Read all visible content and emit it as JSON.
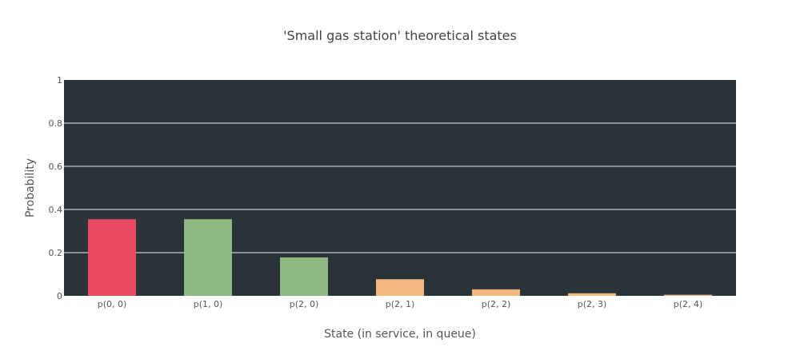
{
  "chart_data": {
    "type": "bar",
    "title": "'Small gas station' theoretical states",
    "xlabel": "State (in service, in queue)",
    "ylabel": "Probability",
    "categories": [
      "p(0, 0)",
      "p(1, 0)",
      "p(2, 0)",
      "p(2, 1)",
      "p(2, 2)",
      "p(2, 3)",
      "p(2, 4)"
    ],
    "values": [
      0.355,
      0.355,
      0.178,
      0.077,
      0.03,
      0.012,
      0.005
    ],
    "bar_colors": [
      "#e84a5f",
      "#8cba80",
      "#8cba80",
      "#f2b880",
      "#f2b880",
      "#f2b880",
      "#f2b880"
    ],
    "ylim": [
      0,
      1
    ],
    "yticks": [
      0,
      0.2,
      0.4,
      0.6,
      0.8,
      1
    ],
    "ytick_labels": [
      "0",
      "0.2",
      "0.4",
      "0.6",
      "0.8",
      "1"
    ],
    "grid": true,
    "legend": false,
    "plot_background": "#2a3439",
    "grid_color": "#aab2b5"
  }
}
